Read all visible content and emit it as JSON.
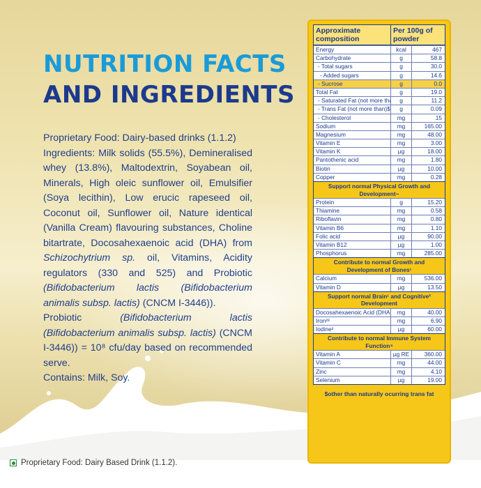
{
  "heading": {
    "line1": "NUTRITION FACTS",
    "line2": "AND INGREDIENTS"
  },
  "description": {
    "line_proprietary": "Proprietary Food: Dairy-based drinks (1.1.2)",
    "ingredients_text": "Ingredients: Milk solids (55.5%), Demineralised whey (13.8%), Maltodextrin, Soyabean oil, Minerals, High oleic sunflower oil, Emulsifier (Soya lecithin), Low erucic rapeseed oil, Coconut oil, Sunflower oil, Nature identical (Vanilla Cream) flavouring substances, Choline bitartrate, Docosahexaenoic acid (DHA) from",
    "ingredients_species": "Schizochytrium sp.",
    "ingredients_text2": "oil, Vitamins, Acidity regulators (330 and 525) and Probiotic",
    "ingredients_probiotic": "(Bifidobacterium lactis (Bifidobacterium animalis subsp. lactis)",
    "ingredients_strain": "(CNCM I-3446)).",
    "probiotic_label": "Probiotic",
    "probiotic_species": "(Bifidobacterium lactis (Bifidobacterium animalis subsp. lactis)",
    "probiotic_count": "(CNCM I-3446)) = 10⁸ cfu/day based on recommended serve.",
    "contains": "Contains: Milk, Soy."
  },
  "footer_note": "Proprietary Food: Dairy Based Drink (1.1.2).",
  "table": {
    "header_composition": "Approximate composition",
    "header_per": "Per 100g of powder",
    "group1": [
      {
        "name": "Energy",
        "unit": "kcal",
        "value": "467",
        "indent": 0
      },
      {
        "name": "Carbohydrate",
        "unit": "g",
        "value": "58.8",
        "indent": 0
      },
      {
        "name": "- Total sugars",
        "unit": "g",
        "value": "30.0",
        "indent": 1
      },
      {
        "name": "- Added sugars",
        "unit": "g",
        "value": "14.6",
        "indent": 2
      },
      {
        "name": "- Sucrose",
        "unit": "g",
        "value": "0.0",
        "indent": 1,
        "highlight": true
      },
      {
        "name": "Total Fat",
        "unit": "g",
        "value": "19.0",
        "indent": 0
      },
      {
        "name": "- Saturated Fat (not more than)",
        "unit": "g",
        "value": "11.2",
        "indent": 1
      },
      {
        "name": "- Trans Fat (not more than)$",
        "unit": "g",
        "value": "0.09",
        "indent": 1
      },
      {
        "name": "- Cholesterol",
        "unit": "mg",
        "value": "15",
        "indent": 1
      },
      {
        "name": "Sodium",
        "unit": "mg",
        "value": "165.00",
        "indent": 0
      },
      {
        "name": "Magnesium",
        "unit": "mg",
        "value": "48.00",
        "indent": 0
      },
      {
        "name": "Vitamin E",
        "unit": "mg",
        "value": "3.00",
        "indent": 0
      },
      {
        "name": "Vitamin K",
        "unit": "µg",
        "value": "18.00",
        "indent": 0
      },
      {
        "name": "Pantothenic acid",
        "unit": "mg",
        "value": "1.80",
        "indent": 0
      },
      {
        "name": "Biotin",
        "unit": "µg",
        "value": "10.00",
        "indent": 0
      },
      {
        "name": "Copper",
        "unit": "mg",
        "value": "0.28",
        "indent": 0
      }
    ],
    "section2_title": "Support normal Physical Growth and Development~",
    "group2": [
      {
        "name": "Protein",
        "unit": "g",
        "value": "15.20"
      },
      {
        "name": "Thiamine",
        "unit": "mg",
        "value": "0.58"
      },
      {
        "name": "Riboflavin",
        "unit": "mg",
        "value": "0.80"
      },
      {
        "name": "Vitamin B6",
        "unit": "mg",
        "value": "1.10"
      },
      {
        "name": "Folic acid",
        "unit": "µg",
        "value": "90.00"
      },
      {
        "name": "Vitamin B12",
        "unit": "µg",
        "value": "1.00"
      },
      {
        "name": "Phosphorus",
        "unit": "mg",
        "value": "285.00"
      }
    ],
    "section3_title": "Contribute to normal Growth and Development of Bones¹",
    "group3": [
      {
        "name": "Calcium",
        "unit": "mg",
        "value": "536.00"
      },
      {
        "name": "Vitamin D",
        "unit": "µg",
        "value": "13.50"
      }
    ],
    "section4_title": "Support normal Brain¹ and Cognitive² Development",
    "group4": [
      {
        "name": "Docosahexaenoic Acid (DHA)",
        "unit": "mg",
        "value": "40.00"
      },
      {
        "name": "Iron²³",
        "unit": "mg",
        "value": "6.90"
      },
      {
        "name": "Iodine²",
        "unit": "µg",
        "value": "60.00"
      }
    ],
    "section5_title": "Contribute to normal Immune System Function⁴",
    "group5": [
      {
        "name": "Vitamin A",
        "unit": "µg RE",
        "value": "360.00"
      },
      {
        "name": "Vitamin C",
        "unit": "mg",
        "value": "44.00"
      },
      {
        "name": "Zinc",
        "unit": "mg",
        "value": "4.10"
      },
      {
        "name": "Selenium",
        "unit": "µg",
        "value": "19.00"
      }
    ],
    "footnote": "$other than naturally ocurring trans fat"
  },
  "colors": {
    "heading_light": "#1a9bd8",
    "heading_dark": "#1c3a8c",
    "panel": "#f6c719"
  }
}
